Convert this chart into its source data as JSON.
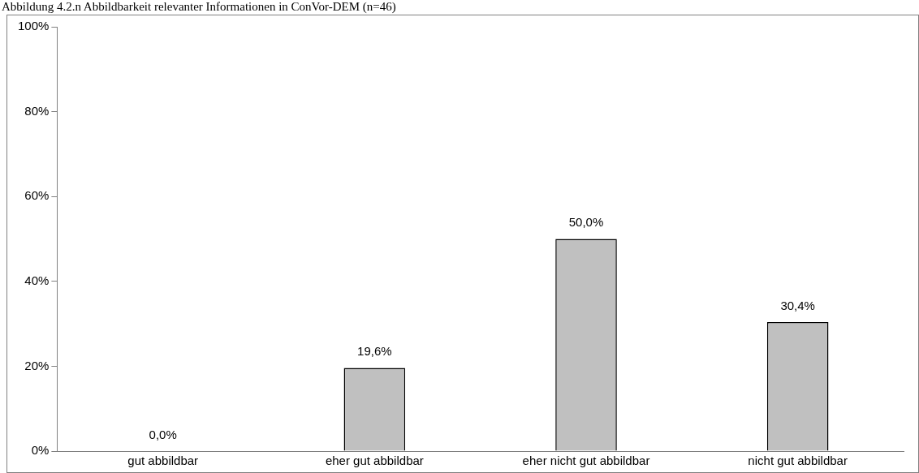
{
  "chart_data": {
    "type": "bar",
    "title": "Abbildung 4.2.n Abbildbarkeit relevanter Informationen in ConVor-DEM (n=46)",
    "categories": [
      "gut abbildbar",
      "eher gut abbildbar",
      "eher nicht gut abbildbar",
      "nicht gut abbildbar"
    ],
    "values": [
      0,
      19.6,
      50,
      30.4
    ],
    "value_labels": [
      "0,0%",
      "19,6%",
      "50,0%",
      "30,4%"
    ],
    "color": "#c0c0c0",
    "ylim": [
      0,
      100
    ],
    "yticks": [
      {
        "value": 0,
        "label": "0%"
      },
      {
        "value": 20,
        "label": "20%"
      },
      {
        "value": 40,
        "label": "40%"
      },
      {
        "value": 60,
        "label": "60%"
      },
      {
        "value": 80,
        "label": "80%"
      },
      {
        "value": 100,
        "label": "100%"
      }
    ],
    "grid": false,
    "legend": false
  }
}
